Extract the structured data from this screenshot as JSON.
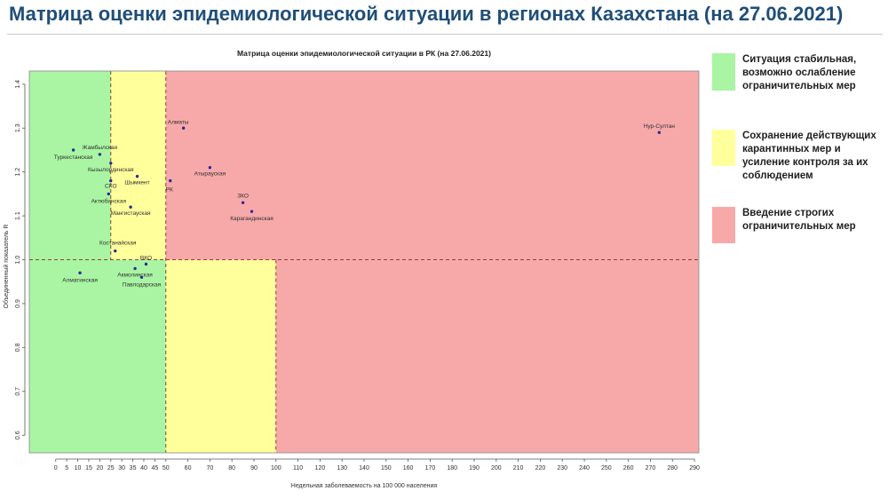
{
  "page": {
    "title": "Матрица оценки эпидемиологической ситуации в регионах Казахстана (на 27.06.2021)"
  },
  "legend": [
    {
      "label": "Ситуация стабильная, возможно ослабление ограничительных мер",
      "color": "#a9f5a3"
    },
    {
      "label": "Сохранение действующих карантинных мер и усиление контроля за их соблюдением",
      "color": "#ffff9c"
    },
    {
      "label": "Введение строгих ограничительных мер",
      "color": "#f7a9a9"
    }
  ],
  "chart_data": {
    "type": "scatter",
    "title": "Матрица оценки эпидемиологической ситуации в РК (на 27.06.2021)",
    "xlabel": "Недельная заболеваемость на 100 000 населения",
    "ylabel": "Объединенный показатель R",
    "xlim": [
      -12,
      292
    ],
    "ylim": [
      0.56,
      1.43
    ],
    "xticks": [
      0,
      5,
      10,
      15,
      20,
      25,
      30,
      35,
      40,
      45,
      50,
      60,
      70,
      80,
      90,
      100,
      110,
      120,
      130,
      140,
      150,
      160,
      170,
      180,
      190,
      200,
      210,
      220,
      230,
      240,
      250,
      260,
      270,
      280,
      290
    ],
    "yticks": [
      0.6,
      0.7,
      0.8,
      0.9,
      1.0,
      1.1,
      1.2,
      1.3,
      1.4
    ],
    "ytick_labels": [
      "0.6",
      "0.7",
      "0.8",
      "0.9",
      "1.0",
      "1.1",
      "1.2",
      "1.3",
      "1.4"
    ],
    "thresholds": {
      "x": [
        25,
        50,
        100
      ],
      "y": 1.0
    },
    "grid": false,
    "zones": [
      {
        "x": [
          -12,
          50
        ],
        "y": [
          0.56,
          1.43
        ],
        "color": "#a9f5a3"
      },
      {
        "x": [
          25,
          50
        ],
        "y": [
          1.0,
          1.43
        ],
        "color": "#ffff9c"
      },
      {
        "x": [
          50,
          100
        ],
        "y": [
          0.56,
          1.0
        ],
        "color": "#ffff9c"
      },
      {
        "x": [
          50,
          292
        ],
        "y": [
          1.0,
          1.43
        ],
        "color": "#f7a9a9"
      },
      {
        "x": [
          100,
          292
        ],
        "y": [
          0.56,
          1.0
        ],
        "color": "#f7a9a9"
      }
    ],
    "points": [
      {
        "label": "Нур-Султан",
        "x": 274,
        "y": 1.29
      },
      {
        "label": "Алматы",
        "x": 58,
        "y": 1.3
      },
      {
        "label": "Атырауская",
        "x": 70,
        "y": 1.21
      },
      {
        "label": "РК",
        "x": 52,
        "y": 1.18
      },
      {
        "label": "ЗКО",
        "x": 85,
        "y": 1.13
      },
      {
        "label": "Карагандинская",
        "x": 89,
        "y": 1.11
      },
      {
        "label": "Жамбылская",
        "x": 20,
        "y": 1.24
      },
      {
        "label": "Туркестанская",
        "x": 8,
        "y": 1.25
      },
      {
        "label": "Кызылординская",
        "x": 25,
        "y": 1.22
      },
      {
        "label": "Шымкент",
        "x": 37,
        "y": 1.19
      },
      {
        "label": "СКО",
        "x": 25,
        "y": 1.18
      },
      {
        "label": "Актюбинская",
        "x": 24,
        "y": 1.15
      },
      {
        "label": "Мангистауская",
        "x": 34,
        "y": 1.12
      },
      {
        "label": "Костанайская",
        "x": 27,
        "y": 1.02
      },
      {
        "label": "ВКО",
        "x": 41,
        "y": 0.99
      },
      {
        "label": "Акмолинская",
        "x": 36,
        "y": 0.98
      },
      {
        "label": "Павлодарская",
        "x": 39,
        "y": 0.96
      },
      {
        "label": "Алматинская",
        "x": 11,
        "y": 0.97
      }
    ]
  }
}
